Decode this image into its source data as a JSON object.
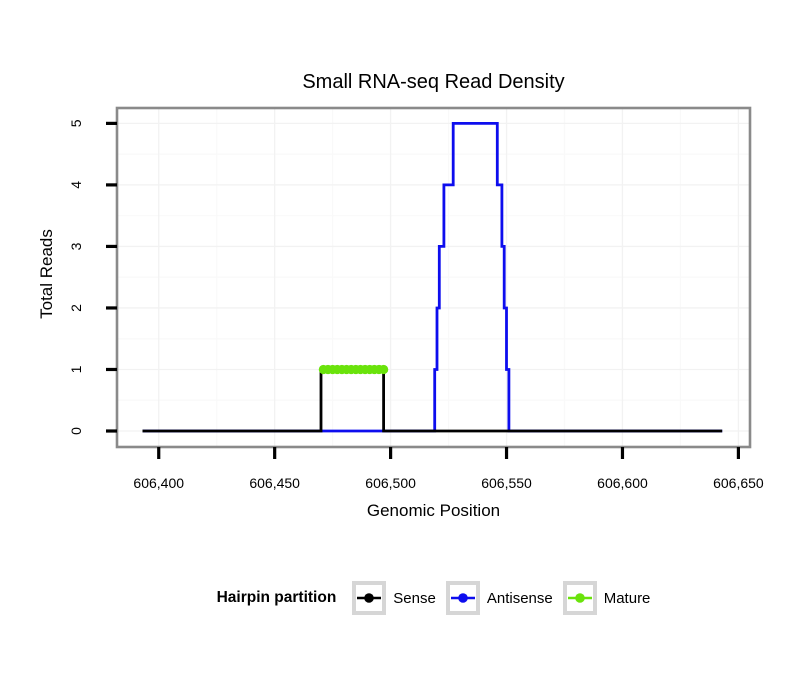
{
  "chart_data": {
    "type": "line",
    "subtype": "step-read-pileup",
    "title": "Small RNA-seq Read Density",
    "xlabel": "Genomic Position",
    "ylabel": "Total Reads",
    "legend_title": "Hairpin partition",
    "legend_position": "bottom",
    "grid": true,
    "panel_background": "#ffffff",
    "panel_border_color": "#8a8a8a",
    "grid_major_color": "#f2f2f2",
    "grid_minor_color": "#f9f9f9",
    "tick_color": "#000000",
    "xlim": [
      606382,
      606655
    ],
    "ylim": [
      -0.26,
      5.25
    ],
    "x_ticks": [
      {
        "value": 606400,
        "label": "606,400"
      },
      {
        "value": 606450,
        "label": "606,450"
      },
      {
        "value": 606500,
        "label": "606,500"
      },
      {
        "value": 606550,
        "label": "606,550"
      },
      {
        "value": 606600,
        "label": "606,600"
      },
      {
        "value": 606650,
        "label": "606,650"
      }
    ],
    "y_ticks": [
      {
        "value": 0,
        "label": "0"
      },
      {
        "value": 1,
        "label": "1"
      },
      {
        "value": 2,
        "label": "2"
      },
      {
        "value": 3,
        "label": "3"
      },
      {
        "value": 4,
        "label": "4"
      },
      {
        "value": 5,
        "label": "5"
      }
    ],
    "x_minor_ticks": [
      606425,
      606475,
      606525,
      606575,
      606625
    ],
    "y_minor_ticks": [
      0.5,
      1.5,
      2.5,
      3.5,
      4.5
    ],
    "series": [
      {
        "name": "Antisense",
        "color": "#0d0dee",
        "style": "step-line",
        "line_width": 2.8,
        "points": [
          [
            606393,
            0
          ],
          [
            606519,
            0
          ],
          [
            606519,
            1
          ],
          [
            606520,
            1
          ],
          [
            606520,
            2
          ],
          [
            606521,
            2
          ],
          [
            606521,
            3
          ],
          [
            606523,
            3
          ],
          [
            606523,
            4
          ],
          [
            606527,
            4
          ],
          [
            606527,
            5
          ],
          [
            606546,
            5
          ],
          [
            606546,
            4
          ],
          [
            606548,
            4
          ],
          [
            606548,
            3
          ],
          [
            606549,
            3
          ],
          [
            606549,
            2
          ],
          [
            606550,
            2
          ],
          [
            606550,
            1
          ],
          [
            606551,
            1
          ],
          [
            606551,
            0
          ],
          [
            606643,
            0
          ]
        ]
      },
      {
        "name": "Sense",
        "color": "#000000",
        "style": "step-line",
        "line_width": 2.8,
        "points": [
          [
            606393,
            0
          ],
          [
            606470,
            0
          ],
          [
            606470,
            1
          ],
          [
            606497,
            1
          ],
          [
            606497,
            0
          ],
          [
            606643,
            0
          ]
        ]
      },
      {
        "name": "Mature",
        "color": "#6ae30b",
        "style": "thick-point-line",
        "line_width": 7,
        "point_radius": 4.6,
        "point_step": 2,
        "points": [
          [
            606471,
            1
          ],
          [
            606497,
            1
          ]
        ]
      }
    ],
    "legend_order": [
      "Sense",
      "Antisense",
      "Mature"
    ]
  }
}
